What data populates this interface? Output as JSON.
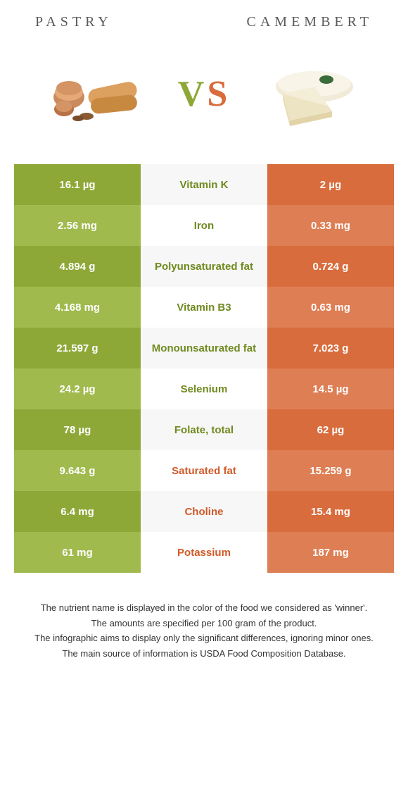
{
  "header": {
    "left_title": "Pastry",
    "right_title": "Camembert",
    "vs_v": "V",
    "vs_s": "S"
  },
  "colors": {
    "green_dark": "#8ea838",
    "green_light": "#a0ba4e",
    "orange_dark": "#d96c3d",
    "orange_light": "#de7e54",
    "mid_bg_a": "#f7f7f7",
    "mid_bg_b": "#ffffff",
    "green_text": "#6f8a1f",
    "orange_text": "#d05a29",
    "white": "#ffffff"
  },
  "rows": [
    {
      "left": "16.1 µg",
      "mid": "Vitamin K",
      "right": "2 µg",
      "winner": "left"
    },
    {
      "left": "2.56 mg",
      "mid": "Iron",
      "right": "0.33 mg",
      "winner": "left"
    },
    {
      "left": "4.894 g",
      "mid": "Polyunsaturated fat",
      "right": "0.724 g",
      "winner": "left"
    },
    {
      "left": "4.168 mg",
      "mid": "Vitamin B3",
      "right": "0.63 mg",
      "winner": "left"
    },
    {
      "left": "21.597 g",
      "mid": "Monounsaturated fat",
      "right": "7.023 g",
      "winner": "left"
    },
    {
      "left": "24.2 µg",
      "mid": "Selenium",
      "right": "14.5 µg",
      "winner": "left"
    },
    {
      "left": "78 µg",
      "mid": "Folate, total",
      "right": "62 µg",
      "winner": "left"
    },
    {
      "left": "9.643 g",
      "mid": "Saturated fat",
      "right": "15.259 g",
      "winner": "right"
    },
    {
      "left": "6.4 mg",
      "mid": "Choline",
      "right": "15.4 mg",
      "winner": "right"
    },
    {
      "left": "61 mg",
      "mid": "Potassium",
      "right": "187 mg",
      "winner": "right"
    }
  ],
  "footnotes": [
    "The nutrient name is displayed in the color of the food we considered as 'winner'.",
    "The amounts are specified per 100 gram of the product.",
    "The infographic aims to display only the significant differences, ignoring minor ones.",
    "The main source of information is USDA Food Composition Database."
  ]
}
